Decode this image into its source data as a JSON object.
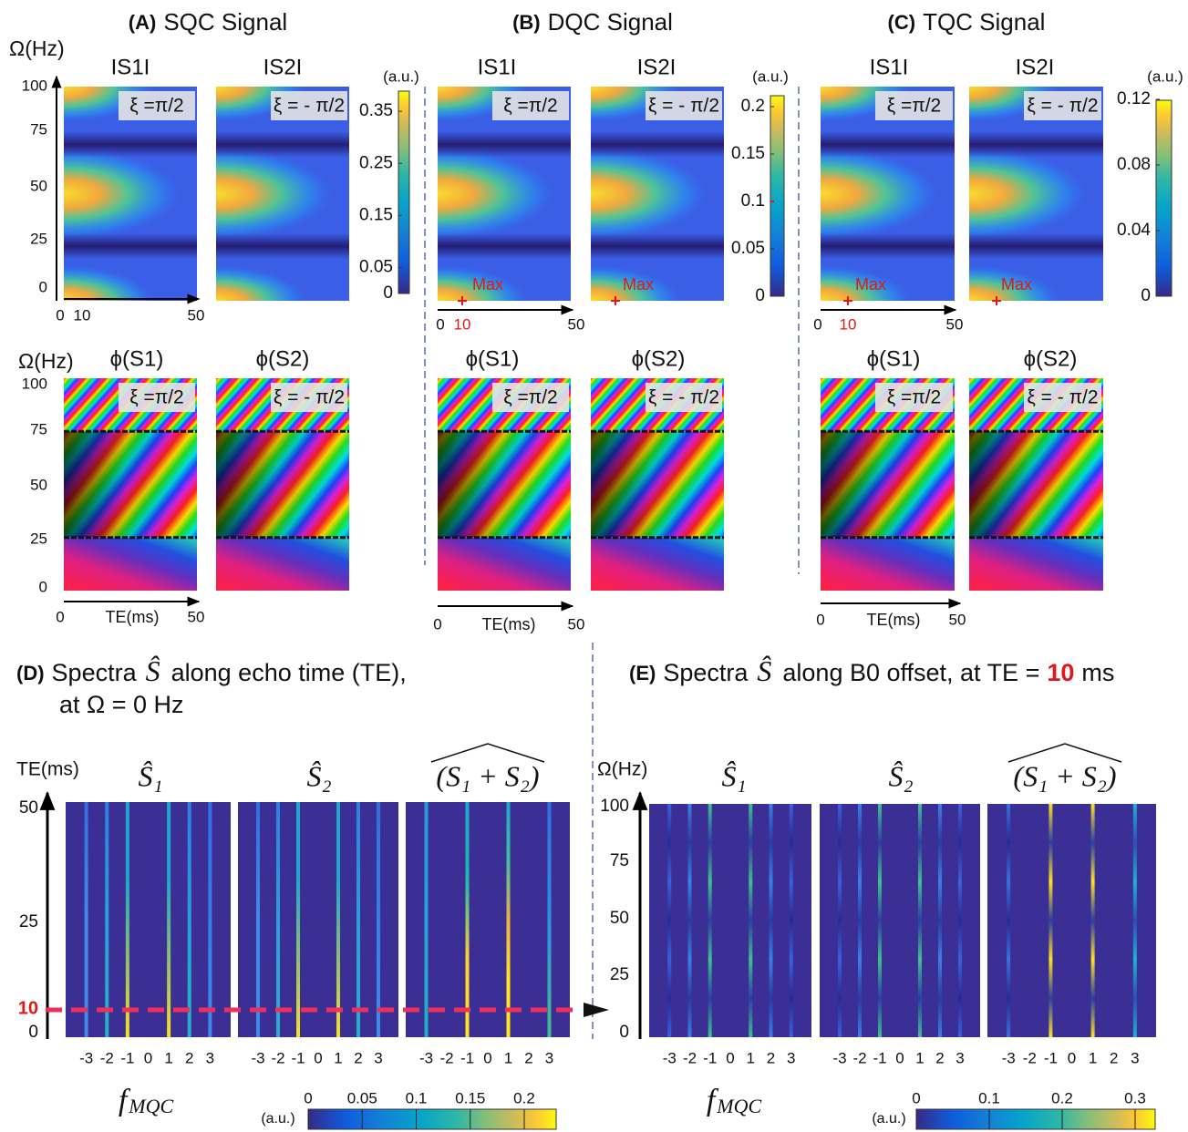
{
  "panels": [
    {
      "label": "(A)",
      "title": "SQC Signal",
      "magnitude": {
        "y_axis_label": "Ω(Hz)",
        "yticks": [
          100,
          75,
          50,
          25,
          0
        ],
        "columns": [
          "IS1I",
          "IS2I"
        ],
        "xi": [
          "ξ =π/2",
          "ξ = - π/2"
        ],
        "xticks": [
          0,
          10,
          50
        ],
        "colorbar_unit": "(a.u.)",
        "colorbar_ticks": [
          0.35,
          0.25,
          0.15,
          0.05,
          0
        ]
      },
      "phase": {
        "y_axis_label": "Ω(Hz)",
        "yticks": [
          100,
          75,
          50,
          25,
          0
        ],
        "columns": [
          "ϕ(S1)",
          "ϕ(S2)"
        ],
        "xticks": [
          0,
          50
        ],
        "x_axis_label": "TE(ms)"
      }
    },
    {
      "label": "(B)",
      "title": "DQC Signal",
      "magnitude": {
        "columns": [
          "IS1I",
          "IS2I"
        ],
        "xi": [
          "ξ =π/2",
          "ξ = - π/2"
        ],
        "xticks": [
          0,
          10,
          50
        ],
        "max_label": "Max",
        "colorbar_unit": "(a.u.)",
        "colorbar_ticks": [
          0.2,
          0.15,
          0.1,
          0.05,
          0
        ]
      },
      "phase": {
        "columns": [
          "ϕ(S1)",
          "ϕ(S2)"
        ],
        "xticks": [
          0,
          50
        ],
        "x_axis_label": "TE(ms)"
      }
    },
    {
      "label": "(C)",
      "title": "TQC Signal",
      "magnitude": {
        "columns": [
          "IS1I",
          "IS2I"
        ],
        "xi": [
          "ξ =π/2",
          "ξ = - π/2"
        ],
        "xticks": [
          0,
          10,
          50
        ],
        "max_label": "Max",
        "colorbar_unit": "(a.u.)",
        "colorbar_ticks": [
          0.12,
          0.08,
          0.04,
          0
        ]
      },
      "phase": {
        "columns": [
          "ϕ(S1)",
          "ϕ(S2)"
        ],
        "xticks": [
          0,
          50
        ],
        "x_axis_label": "TE(ms)"
      }
    }
  ],
  "spectra": [
    {
      "label": "(D)",
      "text": "Spectra",
      "symbol": "Ŝ",
      "rest": "along echo time (TE),",
      "line2": "at Ω  = 0 Hz",
      "y_axis_label": "TE(ms)",
      "yticks": [
        50,
        25,
        10,
        0
      ],
      "columns": [
        "Ŝ₁",
        "Ŝ₂",
        "(S₁ + S₂)"
      ],
      "f_ticks": [
        -3,
        -2,
        -1,
        0,
        1,
        2,
        3
      ],
      "f_label": "f",
      "f_sub": "MQC",
      "colorbar_unit": "(a.u.)",
      "colorbar_ticks": [
        0,
        0.05,
        0.1,
        0.15,
        0.2
      ]
    },
    {
      "label": "(E)",
      "text": "Spectra",
      "symbol": "Ŝ",
      "rest": "along B0 offset, at TE =",
      "te": 10,
      "unit": "ms",
      "y_axis_label": "Ω(Hz)",
      "yticks": [
        100,
        75,
        50,
        25,
        0
      ],
      "columns": [
        "Ŝ₁",
        "Ŝ₂",
        "(S₁ + S₂)"
      ],
      "f_ticks": [
        -3,
        -2,
        -1,
        0,
        1,
        2,
        3
      ],
      "f_label": "f",
      "f_sub": "MQC",
      "colorbar_unit": "(a.u.)",
      "colorbar_ticks": [
        0,
        0.1,
        0.2,
        0.3
      ]
    }
  ]
}
